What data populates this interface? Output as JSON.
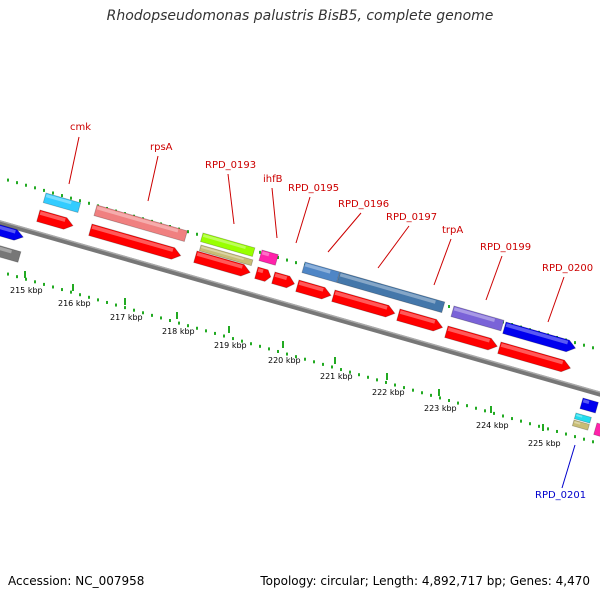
{
  "title": "Rhodopseudomonas palustris BisB5, complete genome",
  "accession": "Accession: NC_007958",
  "summary": "Topology: circular; Length: 4,892,717 bp; Genes: 4,470",
  "colors": {
    "label_forward": "#cc0000",
    "label_reverse": "#0000cc",
    "backbone": "#888888",
    "ticks": "#22aa22"
  },
  "ticks": [
    "215 kbp",
    "216 kbp",
    "217 kbp",
    "218 kbp",
    "219 kbp",
    "220 kbp",
    "221 kbp",
    "222 kbp",
    "223 kbp",
    "224 kbp",
    "225 kbp"
  ],
  "genes": [
    {
      "name": "cmk"
    },
    {
      "name": "rpsA"
    },
    {
      "name": "RPD_0193"
    },
    {
      "name": "ihfB"
    },
    {
      "name": "RPD_0195"
    },
    {
      "name": "RPD_0196"
    },
    {
      "name": "RPD_0197"
    },
    {
      "name": "trpA"
    },
    {
      "name": "RPD_0199"
    },
    {
      "name": "RPD_0200"
    },
    {
      "name": "RPD_0201"
    }
  ]
}
